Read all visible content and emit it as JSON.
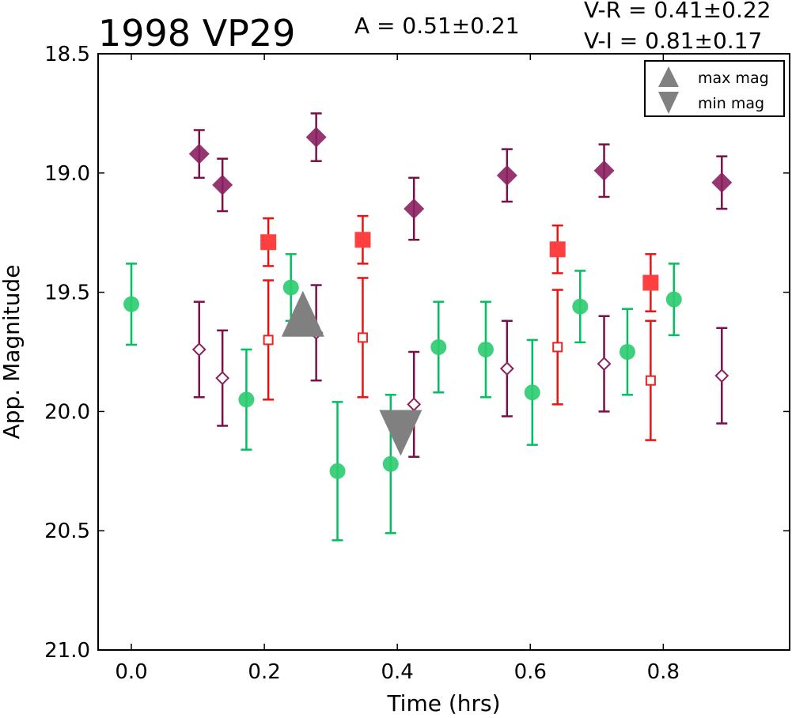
{
  "chart_data": {
    "type": "scatter",
    "title": "1998 VP29",
    "amplitude_text": "A  = 0.51±0.21",
    "color_text_1": "V-R = 0.41±0.22",
    "color_text_2": "V-I  = 0.81±0.17",
    "xlabel": "Time (hrs)",
    "ylabel": "App. Magnitude",
    "xlim": [
      -0.05,
      0.99
    ],
    "ylim": [
      21.0,
      18.5
    ],
    "y_inverted": true,
    "x_ticks": [
      0.0,
      0.2,
      0.4,
      0.6,
      0.8
    ],
    "x_tick_labels": [
      "0.0",
      "0.2",
      "0.4",
      "0.6",
      "0.8"
    ],
    "y_ticks": [
      18.5,
      19.0,
      19.5,
      20.0,
      20.5,
      21.0
    ],
    "y_tick_labels": [
      "18.5",
      "19.0",
      "19.5",
      "20.0",
      "20.5",
      "21.0"
    ],
    "grid": false,
    "legend": {
      "placement": "top-right",
      "entries": [
        {
          "label": "max mag",
          "marker": "triangle-up",
          "color": "#808080"
        },
        {
          "label": "min mag",
          "marker": "triangle-down",
          "color": "#808080"
        }
      ]
    },
    "series": [
      {
        "marker": "circle",
        "filled": true,
        "color": "#2ecc71",
        "errcolor": "#00c060",
        "points": [
          {
            "x": 0.0,
            "y": 19.55,
            "err": 0.17
          },
          {
            "x": 0.173,
            "y": 19.95,
            "err": 0.21
          },
          {
            "x": 0.24,
            "y": 19.48,
            "err": 0.14
          },
          {
            "x": 0.31,
            "y": 20.25,
            "err": 0.29
          },
          {
            "x": 0.39,
            "y": 20.22,
            "err": 0.29
          },
          {
            "x": 0.462,
            "y": 19.73,
            "err": 0.19
          },
          {
            "x": 0.533,
            "y": 19.74,
            "err": 0.2
          },
          {
            "x": 0.603,
            "y": 19.92,
            "err": 0.22
          },
          {
            "x": 0.675,
            "y": 19.56,
            "err": 0.15
          },
          {
            "x": 0.746,
            "y": 19.75,
            "err": 0.18
          },
          {
            "x": 0.816,
            "y": 19.53,
            "err": 0.15
          }
        ]
      },
      {
        "marker": "square",
        "filled": true,
        "color": "#ff4040",
        "errcolor": "#ee1111",
        "points": [
          {
            "x": 0.206,
            "y": 19.29,
            "err": 0.1
          },
          {
            "x": 0.348,
            "y": 19.28,
            "err": 0.1
          },
          {
            "x": 0.641,
            "y": 19.32,
            "err": 0.1
          },
          {
            "x": 0.781,
            "y": 19.46,
            "err": 0.12
          }
        ]
      },
      {
        "marker": "square",
        "filled": false,
        "color": "#ee2222",
        "errcolor": "#ee1111",
        "points": [
          {
            "x": 0.206,
            "y": 19.7,
            "err": 0.25
          },
          {
            "x": 0.348,
            "y": 19.69,
            "err": 0.25
          },
          {
            "x": 0.641,
            "y": 19.73,
            "err": 0.24
          },
          {
            "x": 0.781,
            "y": 19.87,
            "err": 0.25
          }
        ]
      },
      {
        "marker": "diamond",
        "filled": true,
        "color": "#8b2060",
        "errcolor": "#7a1048",
        "points": [
          {
            "x": 0.102,
            "y": 18.92,
            "err": 0.1
          },
          {
            "x": 0.137,
            "y": 19.05,
            "err": 0.11
          },
          {
            "x": 0.278,
            "y": 18.85,
            "err": 0.1
          },
          {
            "x": 0.425,
            "y": 19.15,
            "err": 0.13
          },
          {
            "x": 0.565,
            "y": 19.01,
            "err": 0.11
          },
          {
            "x": 0.711,
            "y": 18.99,
            "err": 0.11
          },
          {
            "x": 0.888,
            "y": 19.04,
            "err": 0.11
          }
        ]
      },
      {
        "marker": "diamond",
        "filled": false,
        "color": "#8b2060",
        "errcolor": "#7a1048",
        "points": [
          {
            "x": 0.102,
            "y": 19.74,
            "err": 0.2
          },
          {
            "x": 0.137,
            "y": 19.86,
            "err": 0.2
          },
          {
            "x": 0.278,
            "y": 19.67,
            "err": 0.2
          },
          {
            "x": 0.425,
            "y": 19.97,
            "err": 0.22
          },
          {
            "x": 0.565,
            "y": 19.82,
            "err": 0.2
          },
          {
            "x": 0.711,
            "y": 19.8,
            "err": 0.2
          },
          {
            "x": 0.888,
            "y": 19.85,
            "err": 0.2
          }
        ]
      }
    ],
    "extrema": [
      {
        "kind": "max",
        "x": 0.258,
        "y": 19.6,
        "color": "#808080"
      },
      {
        "kind": "min",
        "x": 0.405,
        "y": 20.08,
        "color": "#808080"
      }
    ]
  }
}
